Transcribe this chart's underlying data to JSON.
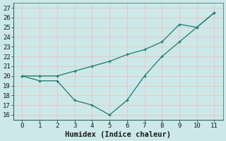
{
  "line1_x": [
    0,
    1,
    2,
    3,
    4,
    5,
    6,
    7,
    8,
    9,
    10,
    11
  ],
  "line1_y": [
    20.0,
    20.0,
    20.0,
    20.5,
    21.0,
    21.5,
    22.2,
    22.7,
    23.5,
    25.3,
    25.0,
    26.5
  ],
  "line2_x": [
    0,
    1,
    2,
    3,
    4,
    5,
    6,
    7,
    8,
    9,
    10,
    11
  ],
  "line2_y": [
    20.0,
    19.5,
    19.5,
    17.5,
    17.0,
    16.0,
    17.5,
    20.0,
    22.0,
    23.5,
    25.0,
    26.5
  ],
  "line_color": "#1a7a6e",
  "bg_color": "#cce8e8",
  "grid_color": "#b0d4d4",
  "xlabel": "Humidex (Indice chaleur)",
  "ylim": [
    15.5,
    27.5
  ],
  "xlim": [
    -0.5,
    11.5
  ],
  "yticks": [
    16,
    17,
    18,
    19,
    20,
    21,
    22,
    23,
    24,
    25,
    26,
    27
  ],
  "xticks": [
    0,
    1,
    2,
    3,
    4,
    5,
    6,
    7,
    8,
    9,
    10,
    11
  ],
  "tick_fontsize": 6.5,
  "xlabel_fontsize": 7.5
}
